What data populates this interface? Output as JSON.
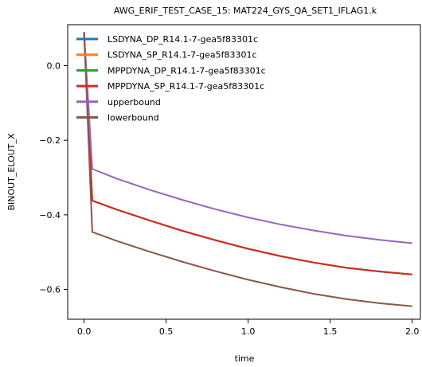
{
  "chart_data": {
    "type": "line",
    "title": "AWG_ERIF_TEST_CASE_15: MAT224_GYS_QA_SET1_IFLAG1.k",
    "xlabel": "time",
    "ylabel": "BINOUT_ELOUT_X",
    "xlim": [
      -0.1,
      2.05
    ],
    "ylim": [
      -0.68,
      0.11
    ],
    "xticks": [
      0.0,
      0.5,
      1.0,
      1.5,
      2.0
    ],
    "xtick_labels": [
      "0.0",
      "0.5",
      "1.0",
      "1.5",
      "2.0"
    ],
    "yticks": [
      0.0,
      -0.2,
      -0.4,
      -0.6
    ],
    "ytick_labels": [
      "0.0",
      "−0.2",
      "−0.4",
      "−0.6"
    ],
    "grid": false,
    "legend_position": "top-left",
    "series": [
      {
        "name": "LSDYNA_DP_R14.1-7-gea5f83301c",
        "color": "#1f77b4",
        "x": [
          0.0,
          0.05,
          0.2,
          0.4,
          0.6,
          0.8,
          1.0,
          1.2,
          1.4,
          1.6,
          1.8,
          2.0
        ],
        "y": [
          0.09,
          -0.362,
          -0.386,
          -0.415,
          -0.443,
          -0.468,
          -0.491,
          -0.511,
          -0.528,
          -0.542,
          -0.552,
          -0.56
        ]
      },
      {
        "name": "LSDYNA_SP_R14.1-7-gea5f83301c",
        "color": "#ff7f0e",
        "x": [
          0.0,
          0.05,
          0.2,
          0.4,
          0.6,
          0.8,
          1.0,
          1.2,
          1.4,
          1.6,
          1.8,
          2.0
        ],
        "y": [
          0.09,
          -0.362,
          -0.386,
          -0.415,
          -0.443,
          -0.468,
          -0.491,
          -0.511,
          -0.528,
          -0.542,
          -0.552,
          -0.56
        ]
      },
      {
        "name": "MPPDYNA_DP_R14.1-7-gea5f83301c",
        "color": "#2ca02c",
        "x": [
          0.0,
          0.05,
          0.2,
          0.4,
          0.6,
          0.8,
          1.0,
          1.2,
          1.4,
          1.6,
          1.8,
          2.0
        ],
        "y": [
          0.09,
          -0.362,
          -0.386,
          -0.415,
          -0.443,
          -0.468,
          -0.491,
          -0.511,
          -0.528,
          -0.542,
          -0.552,
          -0.56
        ]
      },
      {
        "name": "MPPDYNA_SP_R14.1-7-gea5f83301c",
        "color": "#d62728",
        "x": [
          0.0,
          0.05,
          0.2,
          0.4,
          0.6,
          0.8,
          1.0,
          1.2,
          1.4,
          1.6,
          1.8,
          2.0
        ],
        "y": [
          0.09,
          -0.362,
          -0.386,
          -0.415,
          -0.443,
          -0.468,
          -0.491,
          -0.511,
          -0.528,
          -0.542,
          -0.552,
          -0.56
        ]
      },
      {
        "name": "upperbound",
        "color": "#9467bd",
        "x": [
          0.0,
          0.05,
          0.2,
          0.4,
          0.6,
          0.8,
          1.0,
          1.2,
          1.4,
          1.6,
          1.8,
          2.0
        ],
        "y": [
          0.09,
          -0.277,
          -0.303,
          -0.333,
          -0.36,
          -0.385,
          -0.407,
          -0.426,
          -0.442,
          -0.456,
          -0.467,
          -0.476
        ]
      },
      {
        "name": "lowerbound",
        "color": "#8c564b",
        "x": [
          0.0,
          0.05,
          0.2,
          0.4,
          0.6,
          0.8,
          1.0,
          1.2,
          1.4,
          1.6,
          1.8,
          2.0
        ],
        "y": [
          0.09,
          -0.446,
          -0.47,
          -0.499,
          -0.526,
          -0.551,
          -0.574,
          -0.594,
          -0.612,
          -0.626,
          -0.637,
          -0.645
        ]
      }
    ]
  }
}
